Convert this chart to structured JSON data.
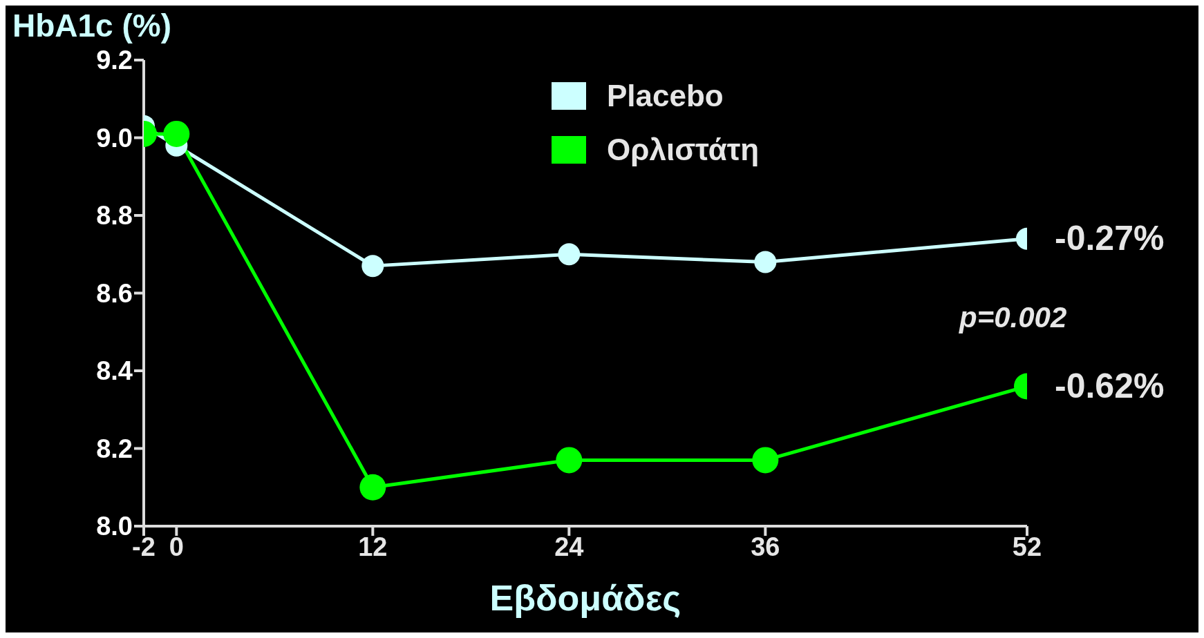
{
  "chart_data": {
    "type": "line",
    "ylabel": "HbA1c (%)",
    "xlabel": "Εβδομάδες",
    "x": [
      -2,
      0,
      12,
      24,
      36,
      52
    ],
    "series": [
      {
        "name": "Placebo",
        "color": "#ccffff",
        "values": [
          9.03,
          8.98,
          8.67,
          8.7,
          8.68,
          8.74
        ]
      },
      {
        "name": "Ορλιστάτη",
        "color": "#00ff00",
        "values": [
          9.01,
          9.01,
          8.1,
          8.17,
          8.17,
          8.36
        ]
      }
    ],
    "xlim": [
      -2,
      52
    ],
    "xticks": [
      -2,
      0,
      12,
      24,
      36,
      52
    ],
    "ylim": [
      8.0,
      9.2
    ],
    "yticks": [
      {
        "value": 8.0,
        "label": "8.0"
      },
      8.2,
      8.4,
      8.6,
      8.8,
      {
        "value": 9.0,
        "label": "9.0"
      },
      9.2
    ],
    "grid": false,
    "legend": "top",
    "marker": "circle",
    "line_style": "solid",
    "annotations": [
      {
        "text": "-0.27%",
        "x": 52,
        "y": 8.74
      },
      "p=0.002",
      {
        "text": "-0.62%",
        "x": 52,
        "y": 8.36
      }
    ]
  }
}
